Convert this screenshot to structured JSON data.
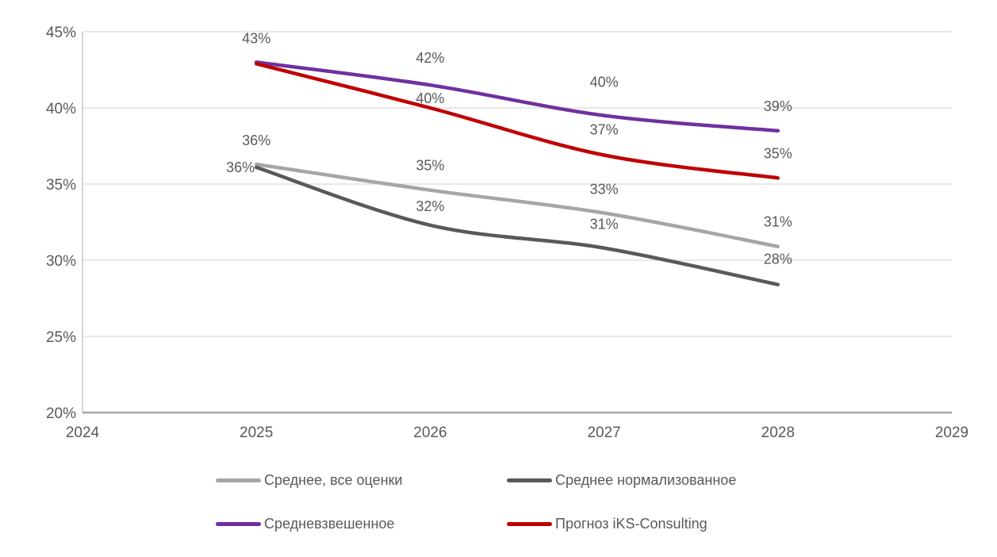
{
  "chart_data": {
    "type": "line",
    "smoothed": true,
    "x": [
      2025,
      2026,
      2027,
      2028
    ],
    "x_axis": {
      "ticks": [
        "2024",
        "2025",
        "2026",
        "2027",
        "2028",
        "2029"
      ],
      "range": [
        2024,
        2029
      ]
    },
    "y_axis": {
      "ticks": [
        "45%",
        "40%",
        "35%",
        "30%",
        "25%",
        "20%"
      ],
      "range": [
        20,
        45
      ],
      "step": 5,
      "format": "percent"
    },
    "grid": true,
    "legend_position": "bottom",
    "series": [
      {
        "name": "Среднее, все оценки",
        "color": "#a6a6a6",
        "values": [
          36.3,
          34.6,
          33.1,
          30.9
        ],
        "labels": [
          "36%",
          "35%",
          "33%",
          "31%"
        ],
        "label_pos": [
          "above",
          "above",
          "above",
          "above"
        ],
        "label_dy": [
          -24,
          -25,
          -24,
          -25
        ]
      },
      {
        "name": "Среднее нормализованное",
        "color": "#595959",
        "values": [
          36.1,
          32.3,
          30.8,
          28.4
        ],
        "labels": [
          "36%",
          "32%",
          "31%",
          "28%"
        ],
        "label_pos": [
          "left",
          "above",
          "above",
          "above"
        ],
        "label_dy": [
          6,
          -18,
          -24,
          -26
        ]
      },
      {
        "name": "Средневзвешенное",
        "color": "#7030a0",
        "values": [
          43.0,
          41.5,
          39.5,
          38.5
        ],
        "labels": [
          "43%",
          "42%",
          "40%",
          "39%"
        ],
        "label_pos": [
          "above",
          "above",
          "above",
          "above"
        ],
        "label_dy": [
          -24,
          -28,
          -36,
          -25
        ]
      },
      {
        "name": "Прогноз iKS-Consulting",
        "color": "#c00000",
        "values": [
          42.9,
          40.0,
          36.9,
          35.4
        ],
        "labels": [
          null,
          "40%",
          "37%",
          "35%"
        ],
        "label_pos": [
          null,
          "above",
          "above",
          "above"
        ],
        "label_dy": [
          null,
          -6,
          -26,
          -25
        ]
      }
    ],
    "colors": {
      "gridline": "#d9d9d9",
      "axis_line": "#bfbfbf",
      "bottom_axis_line": "#a6a6a6",
      "tick_text": "#595959",
      "data_label_text": "#595959"
    }
  }
}
